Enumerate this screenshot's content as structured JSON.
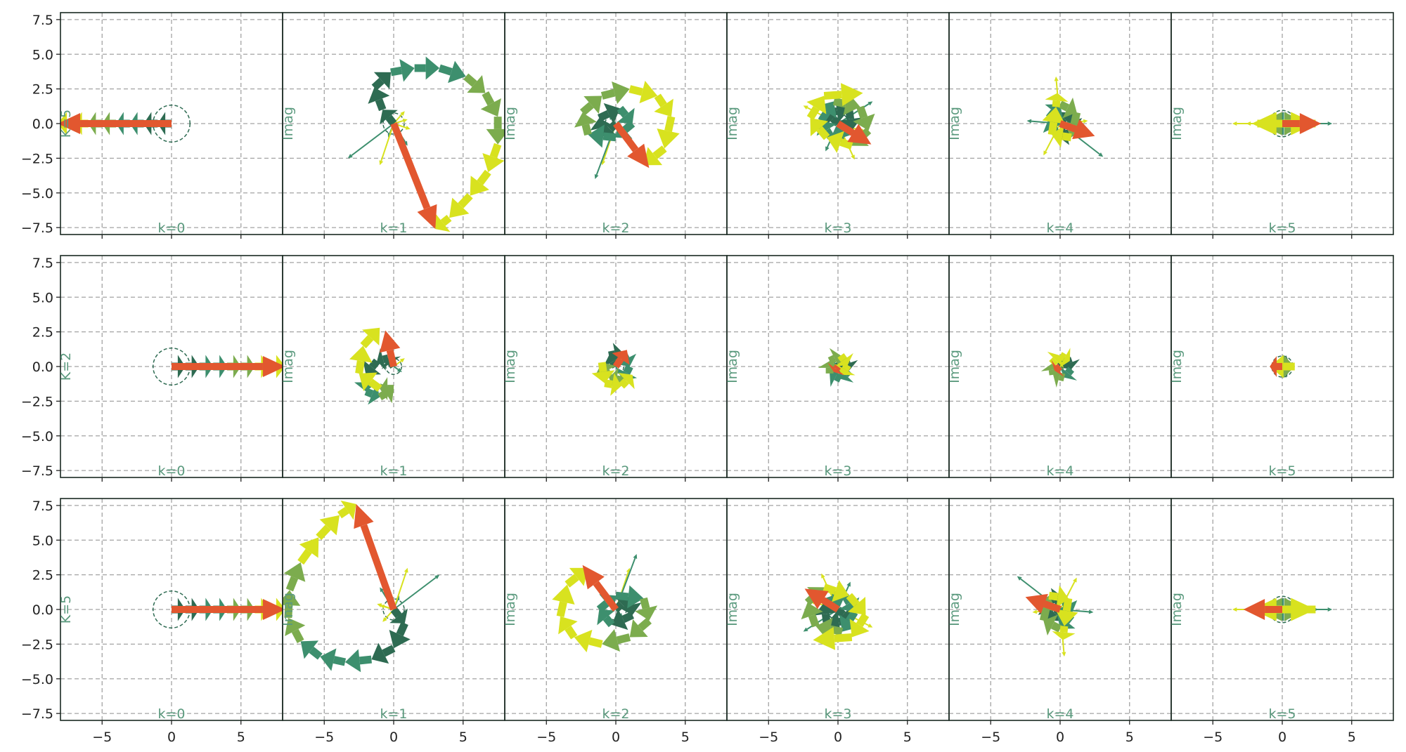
{
  "chart_data": {
    "type": "quiver-grid",
    "rows": 3,
    "cols": 6,
    "xlim": [
      -8,
      8
    ],
    "ylim": [
      -8,
      8
    ],
    "xticks": [
      -5,
      0,
      5
    ],
    "yticks": [
      7.5,
      5.0,
      2.5,
      0.0,
      -2.5,
      -5.0,
      -7.5
    ],
    "xtick_labels": [
      "−5",
      "0",
      "5"
    ],
    "ytick_labels": [
      "7.5",
      "5.0",
      "2.5",
      "0.0",
      "−2.5",
      "−5.0",
      "−7.5"
    ],
    "grid": true,
    "ylabel_first_col": [
      "K=5",
      "K=2",
      "K=5"
    ],
    "ylabel_other_cols": "Imag",
    "panel_labels": [
      "k=0",
      "k=1",
      "k=2",
      "k=3",
      "k=4",
      "k=5"
    ],
    "colors": {
      "accent": "#e2572f",
      "dark": "#2e6b52",
      "mid": "#3d8f6e",
      "light": "#7cac4e",
      "yellow": "#d8e21f",
      "grid": "#a3a3a3",
      "label": "#5b9a7e"
    },
    "panels": [
      [
        {
          "chain": [
            [
              -1.0,
              0
            ],
            [
              -2.0,
              0
            ],
            [
              -3.0,
              0
            ],
            [
              -4.0,
              0
            ],
            [
              -5.0,
              0
            ],
            [
              -6.0,
              0
            ],
            [
              -7.0,
              0
            ],
            [
              -8.2,
              0
            ]
          ],
          "spokes": [],
          "result": [
            -8.2,
            0
          ],
          "circle": 0.7
        },
        {
          "chain": [
            [
              -0.8,
              1.0
            ],
            [
              -1.4,
              2.6
            ],
            [
              -0.2,
              3.7
            ],
            [
              1.5,
              4.0
            ],
            [
              3.3,
              4.0
            ],
            [
              5.2,
              3.4
            ],
            [
              6.6,
              2.2
            ],
            [
              7.5,
              0.5
            ],
            [
              7.5,
              -1.5
            ],
            [
              6.8,
              -3.5
            ],
            [
              5.5,
              -5.2
            ],
            [
              4.0,
              -6.8
            ],
            [
              3.0,
              -7.6
            ]
          ],
          "spokes": [
            [
              1,
              0.3
            ],
            [
              -0.6,
              0.6
            ],
            [
              1.2,
              -0.4
            ],
            [
              -0.4,
              -1.0
            ],
            [
              0.8,
              0.9
            ],
            [
              -3.3,
              -2.5
            ],
            [
              -1.0,
              -3.0
            ],
            [
              1.0,
              -1.6
            ]
          ],
          "result": [
            3.0,
            -7.6
          ],
          "circle": 0.4
        },
        {
          "chain": [
            [
              -0.9,
              -0.9
            ],
            [
              -1.2,
              0.4
            ],
            [
              0.3,
              1.1
            ],
            [
              1.2,
              0.0
            ],
            [
              0.0,
              -1.0
            ],
            [
              -2.0,
              -0.8
            ],
            [
              -2.4,
              0.8
            ],
            [
              -1.0,
              2.0
            ],
            [
              1.0,
              2.5
            ],
            [
              3.0,
              2.0
            ],
            [
              4.0,
              0.5
            ],
            [
              3.5,
              -1.8
            ],
            [
              2.0,
              -3.0
            ]
          ],
          "spokes": [
            [
              -1.0,
              -3.0
            ],
            [
              -1.5,
              -4.0
            ],
            [
              0.8,
              -1.2
            ],
            [
              -0.5,
              0.6
            ]
          ],
          "result": [
            2.4,
            -3.2
          ],
          "circle": 0.4
        },
        {
          "chain": [
            [
              -0.8,
              0.8
            ],
            [
              0.8,
              1.0
            ],
            [
              1.0,
              -0.5
            ],
            [
              -0.5,
              -1.0
            ],
            [
              -1.2,
              0.2
            ],
            [
              -0.3,
              1.6
            ],
            [
              1.6,
              1.2
            ],
            [
              2.2,
              -0.5
            ],
            [
              1.0,
              -1.6
            ],
            [
              -0.8,
              -1.0
            ],
            [
              -2.0,
              0.4
            ],
            [
              -1.0,
              2.0
            ],
            [
              1.8,
              2.2
            ]
          ],
          "spokes": [
            [
              -2.5,
              1.3
            ],
            [
              2.5,
              1.6
            ],
            [
              1.2,
              -2.6
            ],
            [
              -0.9,
              -2.0
            ],
            [
              2.0,
              -0.6
            ],
            [
              -1.0,
              1.2
            ]
          ],
          "result": [
            2.4,
            -1.5
          ],
          "circle": 0.4
        },
        {
          "chain": [
            [
              0.6,
              0.8
            ],
            [
              1.0,
              -0.6
            ],
            [
              -0.2,
              -0.9
            ],
            [
              -0.8,
              0.4
            ],
            [
              0.0,
              1.4
            ],
            [
              1.2,
              0.8
            ],
            [
              0.8,
              -1.0
            ],
            [
              -0.6,
              -0.8
            ],
            [
              -0.3,
              1.2
            ],
            [
              -0.2,
              2.2
            ]
          ],
          "spokes": [
            [
              -1.2,
              -2.3
            ],
            [
              3.1,
              -2.4
            ],
            [
              -0.3,
              3.4
            ],
            [
              -2.4,
              0.2
            ],
            [
              2.0,
              0.2
            ]
          ],
          "result": [
            2.5,
            -0.9
          ],
          "circle": 0.4
        },
        {
          "chain": [
            [
              0.6,
              0
            ],
            [
              -0.6,
              0
            ],
            [
              1.2,
              0
            ],
            [
              -1.2,
              0
            ],
            [
              1.8,
              0
            ],
            [
              -1.8,
              0
            ],
            [
              2.4,
              0
            ],
            [
              -2.2,
              0
            ]
          ],
          "spokes": [
            [
              -3.6,
              0
            ],
            [
              3.6,
              0
            ],
            [
              -2.6,
              0
            ],
            [
              2.6,
              0
            ]
          ],
          "result": [
            2.8,
            0
          ],
          "circle": 0.5
        }
      ],
      [
        {
          "chain": [
            [
              1.0,
              0
            ],
            [
              2.0,
              0
            ],
            [
              3.0,
              0
            ],
            [
              4.0,
              0
            ],
            [
              5.0,
              0
            ],
            [
              6.0,
              0
            ],
            [
              7.0,
              0
            ],
            [
              8.2,
              0
            ]
          ],
          "spokes": [],
          "result": [
            8.2,
            0
          ],
          "circle": 0.7
        },
        {
          "chain": [
            [
              -0.4,
              0.6
            ],
            [
              -1.2,
              0.4
            ],
            [
              -2.0,
              -0.6
            ],
            [
              -2.0,
              -1.8
            ],
            [
              -1.0,
              -2.2
            ],
            [
              0.0,
              -1.6
            ],
            [
              -1.0,
              -1.6
            ],
            [
              -2.5,
              -0.5
            ],
            [
              -2.2,
              1.5
            ],
            [
              -1.0,
              2.8
            ]
          ],
          "spokes": [
            [
              0.8,
              0.6
            ],
            [
              0.6,
              -0.4
            ],
            [
              -0.4,
              0.5
            ]
          ],
          "result": [
            -0.6,
            2.6
          ],
          "circle": 0.3
        },
        {
          "chain": [
            [
              -0.5,
              0.8
            ],
            [
              0.5,
              1.0
            ],
            [
              1.0,
              0.0
            ],
            [
              0.5,
              -1.0
            ],
            [
              -0.5,
              -0.8
            ],
            [
              -1.0,
              0.3
            ],
            [
              -0.8,
              -1.2
            ],
            [
              0.4,
              -1.4
            ],
            [
              1.2,
              -0.6
            ]
          ],
          "spokes": [
            [
              -0.2,
              0.8
            ],
            [
              0.3,
              -0.6
            ]
          ],
          "result": [
            0.8,
            1.2
          ],
          "circle": 0.3
        },
        {
          "chain": [
            [
              0.5,
              0.6
            ],
            [
              0.8,
              -0.3
            ],
            [
              0.2,
              -0.9
            ],
            [
              -0.6,
              -0.5
            ],
            [
              -0.6,
              0.4
            ],
            [
              0.2,
              0.8
            ],
            [
              0.7,
              0.1
            ],
            [
              0.3,
              -0.6
            ]
          ],
          "spokes": [
            [
              0.4,
              0.3
            ],
            [
              -0.3,
              0.3
            ]
          ],
          "result": [
            -0.3,
            -0.4
          ],
          "circle": 0.3
        },
        {
          "chain": [
            [
              0.5,
              0.6
            ],
            [
              0.8,
              -0.2
            ],
            [
              0.3,
              -0.8
            ],
            [
              -0.5,
              -0.6
            ],
            [
              -0.6,
              0.2
            ],
            [
              0.0,
              0.8
            ],
            [
              0.7,
              0.4
            ]
          ],
          "spokes": [
            [
              0.3,
              0.3
            ]
          ],
          "result": [
            -0.4,
            -0.3
          ],
          "circle": 0.3
        },
        {
          "chain": [
            [
              0.6,
              0
            ],
            [
              -0.6,
              0
            ],
            [
              0.9,
              0
            ],
            [
              -0.9,
              0
            ]
          ],
          "spokes": [],
          "result": [
            -0.9,
            0
          ],
          "circle": 0.4
        }
      ],
      [
        {
          "chain": [
            [
              1.0,
              0
            ],
            [
              2.0,
              0
            ],
            [
              3.0,
              0
            ],
            [
              4.0,
              0
            ],
            [
              5.0,
              0
            ],
            [
              6.0,
              0
            ],
            [
              7.0,
              0
            ],
            [
              8.2,
              0
            ]
          ],
          "spokes": [],
          "result": [
            8.2,
            0
          ],
          "circle": 0.7
        },
        {
          "chain": [
            [
              0.8,
              -1.0
            ],
            [
              0.0,
              -2.8
            ],
            [
              -1.6,
              -3.6
            ],
            [
              -3.5,
              -3.8
            ],
            [
              -5.3,
              -3.4
            ],
            [
              -6.7,
              -2.3
            ],
            [
              -7.6,
              -0.6
            ],
            [
              -7.5,
              1.4
            ],
            [
              -6.7,
              3.4
            ],
            [
              -5.4,
              5.2
            ],
            [
              -3.9,
              6.8
            ],
            [
              -2.7,
              7.6
            ]
          ],
          "spokes": [
            [
              -1,
              0.3
            ],
            [
              0.6,
              -0.6
            ],
            [
              -1.2,
              0.4
            ],
            [
              0.4,
              1.0
            ],
            [
              -0.8,
              -0.9
            ],
            [
              3.3,
              2.5
            ],
            [
              1.0,
              3.0
            ],
            [
              -1.0,
              1.6
            ]
          ],
          "result": [
            -2.7,
            7.6
          ],
          "circle": 0.4
        },
        {
          "chain": [
            [
              0.9,
              0.9
            ],
            [
              1.2,
              -0.4
            ],
            [
              -0.3,
              -1.1
            ],
            [
              -1.2,
              0.0
            ],
            [
              0.0,
              1.0
            ],
            [
              2.0,
              0.8
            ],
            [
              2.4,
              -0.8
            ],
            [
              1.0,
              -2.0
            ],
            [
              -1.0,
              -2.5
            ],
            [
              -3.0,
              -2.0
            ],
            [
              -4.0,
              -0.5
            ],
            [
              -3.5,
              1.8
            ],
            [
              -2.0,
              3.0
            ]
          ],
          "spokes": [
            [
              1.0,
              3.0
            ],
            [
              1.5,
              4.0
            ],
            [
              -0.8,
              1.2
            ],
            [
              0.5,
              -0.6
            ]
          ],
          "result": [
            -2.4,
            3.2
          ],
          "circle": 0.4
        },
        {
          "chain": [
            [
              0.8,
              -0.8
            ],
            [
              -0.8,
              -1.0
            ],
            [
              -1.0,
              0.5
            ],
            [
              0.5,
              1.0
            ],
            [
              1.2,
              -0.2
            ],
            [
              0.3,
              -1.6
            ],
            [
              -1.6,
              -1.2
            ],
            [
              -2.2,
              0.5
            ],
            [
              -1.0,
              1.6
            ],
            [
              0.8,
              1.0
            ],
            [
              2.0,
              -0.4
            ],
            [
              1.0,
              -2.0
            ],
            [
              -1.8,
              -2.2
            ]
          ],
          "spokes": [
            [
              2.5,
              -1.3
            ],
            [
              -2.5,
              -1.6
            ],
            [
              -1.2,
              2.6
            ],
            [
              0.9,
              2.0
            ],
            [
              -2.0,
              0.6
            ],
            [
              1.0,
              -1.2
            ]
          ],
          "result": [
            -2.4,
            1.5
          ],
          "circle": 0.4
        },
        {
          "chain": [
            [
              -0.6,
              -0.8
            ],
            [
              -1.0,
              0.6
            ],
            [
              0.2,
              0.9
            ],
            [
              0.8,
              -0.4
            ],
            [
              0.0,
              -1.4
            ],
            [
              -1.2,
              -0.8
            ],
            [
              -0.8,
              1.0
            ],
            [
              0.6,
              0.8
            ],
            [
              0.3,
              -1.2
            ],
            [
              0.2,
              -2.2
            ]
          ],
          "spokes": [
            [
              1.2,
              2.3
            ],
            [
              -3.1,
              2.4
            ],
            [
              0.3,
              -3.4
            ],
            [
              2.4,
              -0.2
            ],
            [
              -2.0,
              -0.2
            ]
          ],
          "result": [
            -2.5,
            0.9
          ],
          "circle": 0.4
        },
        {
          "chain": [
            [
              0.6,
              0
            ],
            [
              -0.6,
              0
            ],
            [
              1.2,
              0
            ],
            [
              -1.2,
              0
            ],
            [
              1.8,
              0
            ],
            [
              -1.8,
              0
            ],
            [
              2.4,
              0
            ],
            [
              -2.2,
              0
            ]
          ],
          "spokes": [
            [
              -3.6,
              0
            ],
            [
              3.6,
              0
            ],
            [
              -2.6,
              0
            ],
            [
              2.6,
              0
            ]
          ],
          "result": [
            -2.8,
            0
          ],
          "circle": 0.5
        }
      ]
    ]
  }
}
